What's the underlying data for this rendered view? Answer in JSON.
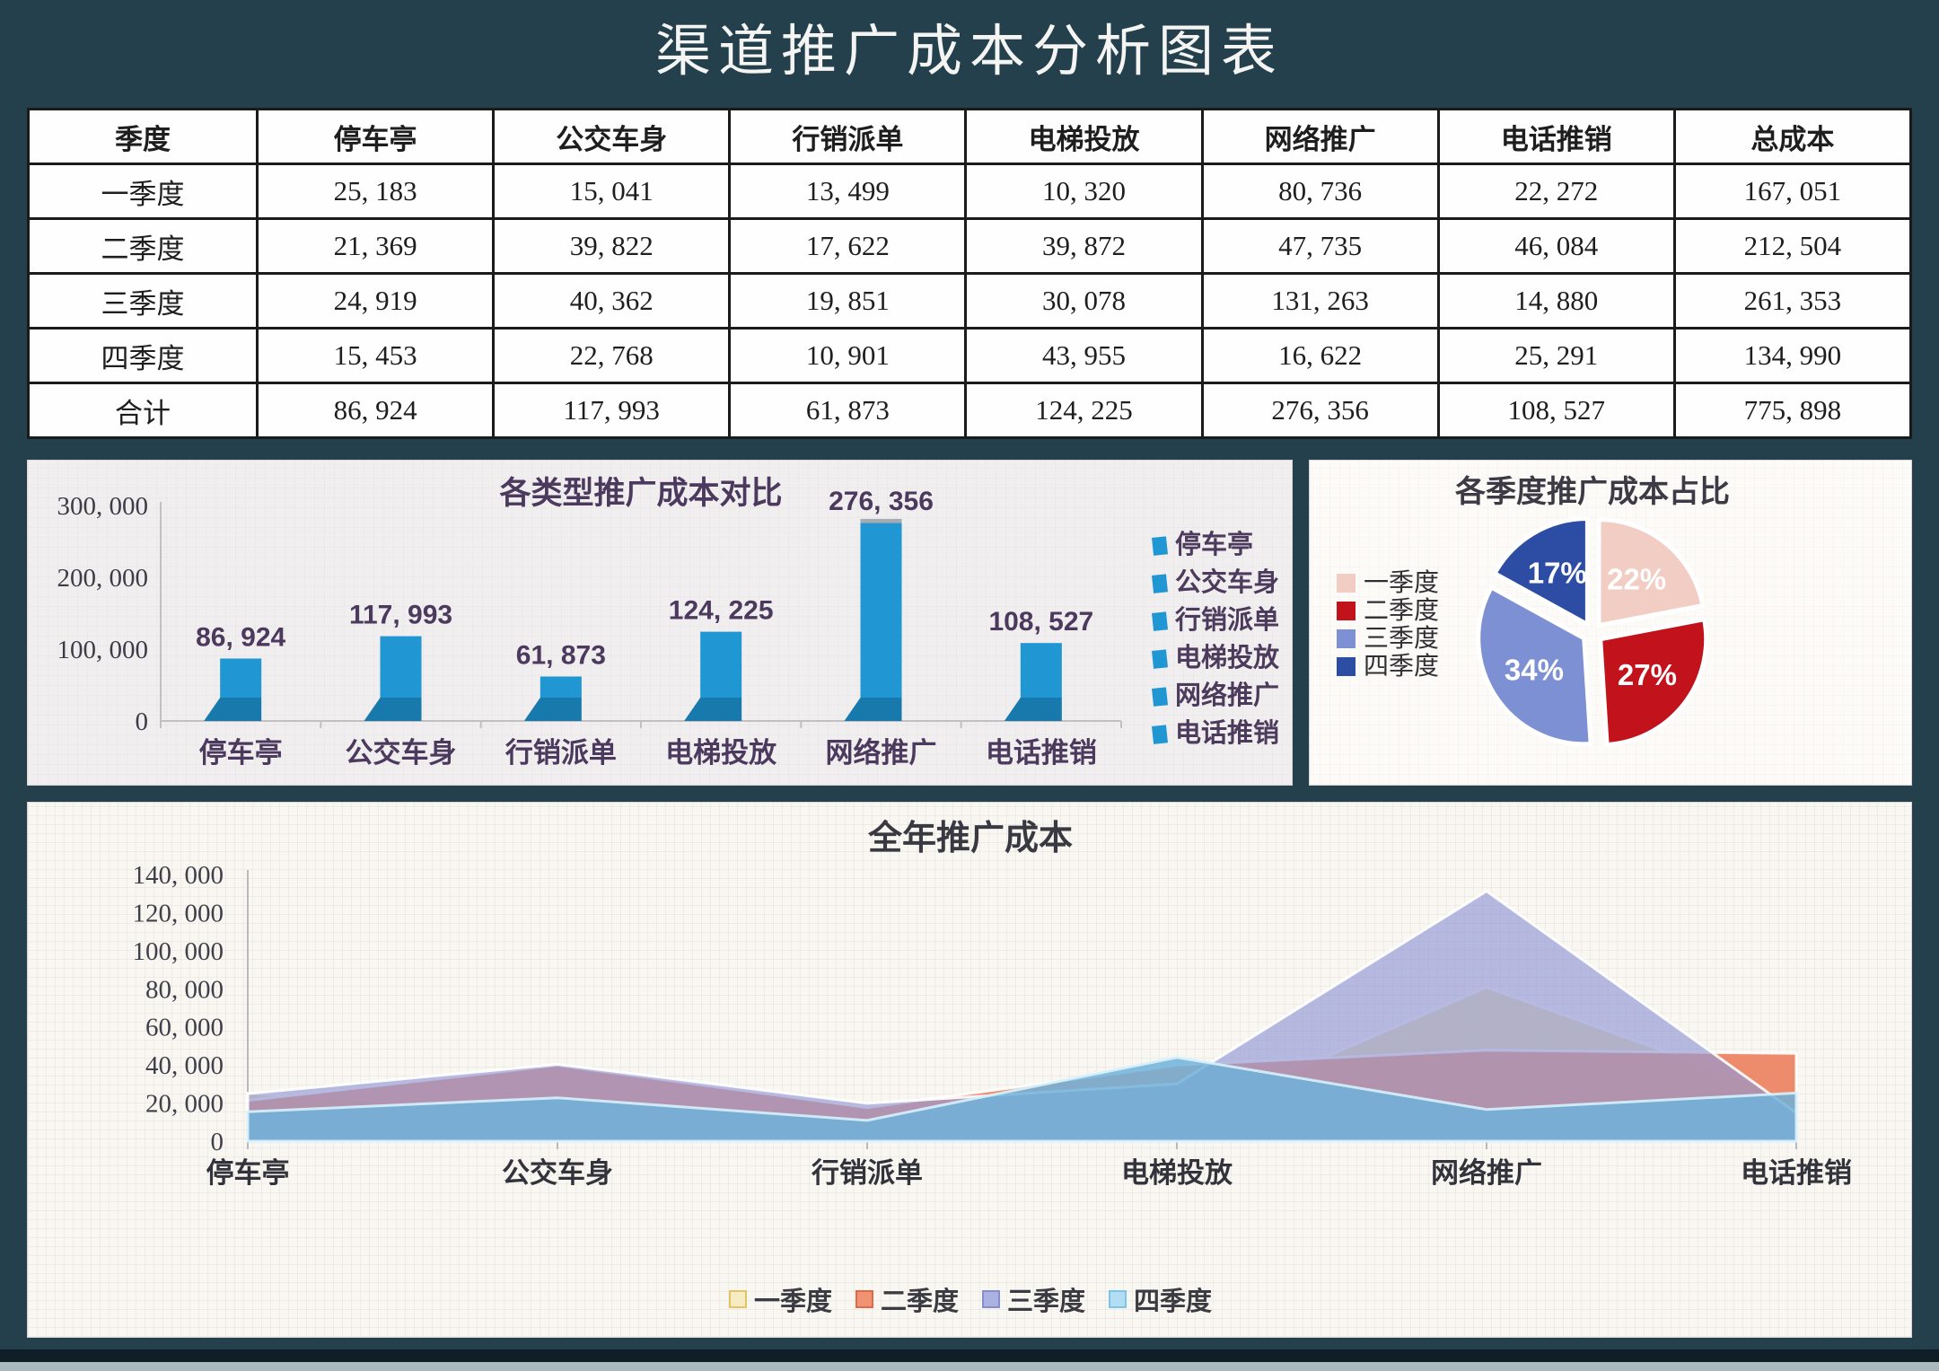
{
  "page": {
    "title": "渠道推广成本分析图表",
    "background_color": "#24404D",
    "bottom_band_color": "#0F1D26",
    "bottom_strip_color": "#A9B9BD"
  },
  "table": {
    "headers": [
      "季度",
      "停车亭",
      "公交车身",
      "行销派单",
      "电梯投放",
      "网络推广",
      "电话推销",
      "总成本"
    ],
    "rows": [
      [
        "一季度",
        "25, 183",
        "15, 041",
        "13, 499",
        "10, 320",
        "80, 736",
        "22, 272",
        "167, 051"
      ],
      [
        "二季度",
        "21, 369",
        "39, 822",
        "17, 622",
        "39, 872",
        "47, 735",
        "46, 084",
        "212, 504"
      ],
      [
        "三季度",
        "24, 919",
        "40, 362",
        "19, 851",
        "30, 078",
        "131, 263",
        "14, 880",
        "261, 353"
      ],
      [
        "四季度",
        "15, 453",
        "22, 768",
        "10, 901",
        "43, 955",
        "16, 622",
        "25, 291",
        "134, 990"
      ],
      [
        "合计",
        "86, 924",
        "117, 993",
        "61, 873",
        "124, 225",
        "276, 356",
        "108, 527",
        "775, 898"
      ]
    ]
  },
  "chart_data": [
    {
      "type": "bar",
      "title": "各类型推广成本对比",
      "categories": [
        "停车亭",
        "公交车身",
        "行销派单",
        "电梯投放",
        "网络推广",
        "电话推销"
      ],
      "values": [
        86924,
        117993,
        61873,
        124225,
        276356,
        108527
      ],
      "value_labels": [
        "86, 924",
        "117, 993",
        "61, 873",
        "124, 225",
        "276, 356",
        "108, 527"
      ],
      "ylim": [
        0,
        300000
      ],
      "yticks": [
        {
          "v": 300000,
          "label": "300, 000"
        },
        {
          "v": 200000,
          "label": "200, 000"
        },
        {
          "v": 100000,
          "label": "100, 000"
        },
        {
          "v": 0,
          "label": "0"
        }
      ],
      "legend": [
        "停车亭",
        "公交车身",
        "行销派单",
        "电梯投放",
        "网络推广",
        "电话推销"
      ],
      "legend_position": "right",
      "grid": false,
      "colors": {
        "bar": "#2097D3",
        "bar_dark": "#1879AC",
        "cap": "#97A1A8",
        "axis": "#C2C0C4"
      }
    },
    {
      "type": "pie",
      "title": "各季度推广成本占比",
      "labels": [
        "一季度",
        "二季度",
        "三季度",
        "四季度"
      ],
      "values": [
        22,
        27,
        34,
        17
      ],
      "value_labels": [
        "22%",
        "27%",
        "34%",
        "17%"
      ],
      "slice_colors": [
        "#F2CDC3",
        "#C2121B",
        "#7D90D3",
        "#2D4DA4"
      ],
      "legend_position": "left"
    },
    {
      "type": "area",
      "title": "全年推广成本",
      "categories": [
        "停车亭",
        "公交车身",
        "行销派单",
        "电梯投放",
        "网络推广",
        "电话推销"
      ],
      "series": [
        {
          "name": "一季度",
          "values": [
            25183,
            15041,
            13499,
            10320,
            80736,
            22272
          ],
          "fill": "#EBDCA0",
          "opacity": 0.85,
          "stroke": "#FFFFFF",
          "legend_fill": "#F6ECC4",
          "legend_border": "#E2C366"
        },
        {
          "name": "二季度",
          "values": [
            21369,
            39822,
            17622,
            39872,
            47735,
            46084
          ],
          "fill": "#EB7955",
          "opacity": 0.85,
          "stroke": "#FFFFFF",
          "legend_fill": "#F09372",
          "legend_border": "#DE6A47"
        },
        {
          "name": "三季度",
          "values": [
            24919,
            40362,
            19851,
            30078,
            131263,
            14880
          ],
          "fill": "#9198D5",
          "opacity": 0.66,
          "stroke": "#FFFFFF",
          "legend_fill": "#ABB1E0",
          "legend_border": "#868DCB"
        },
        {
          "name": "四季度",
          "values": [
            15453,
            22768,
            10901,
            43955,
            16622,
            25291
          ],
          "fill": "#70B1DB",
          "opacity": 0.85,
          "stroke": "#D7F1FC",
          "legend_fill": "#B2DDF3",
          "legend_border": "#7CC4E8"
        }
      ],
      "ylim": [
        0,
        140000
      ],
      "yticks": [
        {
          "v": 140000,
          "label": "140, 000"
        },
        {
          "v": 120000,
          "label": "120, 000"
        },
        {
          "v": 100000,
          "label": "100, 000"
        },
        {
          "v": 80000,
          "label": "80, 000"
        },
        {
          "v": 60000,
          "label": "60, 000"
        },
        {
          "v": 40000,
          "label": "40, 000"
        },
        {
          "v": 20000,
          "label": "20, 000"
        },
        {
          "v": 0,
          "label": "0"
        }
      ],
      "legend_position": "bottom",
      "grid": false,
      "colors": {
        "axis": "#B9B9BD"
      }
    }
  ]
}
